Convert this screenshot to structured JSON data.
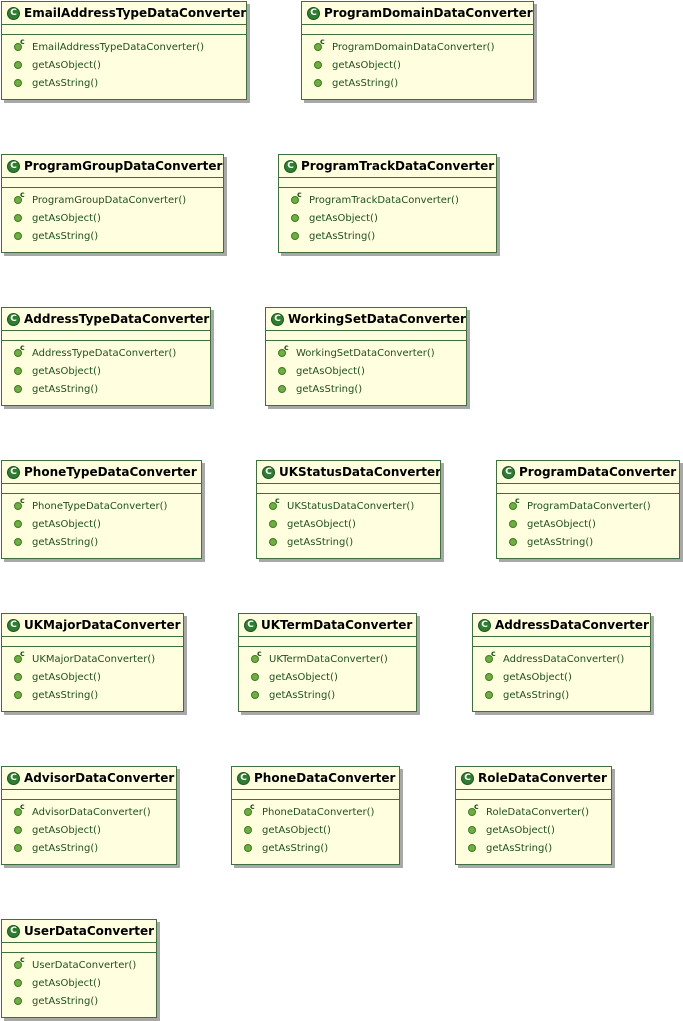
{
  "classes": [
    {
      "name": "EmailAddressTypeDataConverter",
      "methods": [
        "EmailAddressTypeDataConverter()",
        "getAsObject()",
        "getAsString()"
      ]
    },
    {
      "name": "ProgramDomainDataConverter",
      "methods": [
        "ProgramDomainDataConverter()",
        "getAsObject()",
        "getAsString()"
      ]
    },
    {
      "name": "ProgramGroupDataConverter",
      "methods": [
        "ProgramGroupDataConverter()",
        "getAsObject()",
        "getAsString()"
      ]
    },
    {
      "name": "ProgramTrackDataConverter",
      "methods": [
        "ProgramTrackDataConverter()",
        "getAsObject()",
        "getAsString()"
      ]
    },
    {
      "name": "AddressTypeDataConverter",
      "methods": [
        "AddressTypeDataConverter()",
        "getAsObject()",
        "getAsString()"
      ]
    },
    {
      "name": "WorkingSetDataConverter",
      "methods": [
        "WorkingSetDataConverter()",
        "getAsObject()",
        "getAsString()"
      ]
    },
    {
      "name": "PhoneTypeDataConverter",
      "methods": [
        "PhoneTypeDataConverter()",
        "getAsObject()",
        "getAsString()"
      ]
    },
    {
      "name": "UKStatusDataConverter",
      "methods": [
        "UKStatusDataConverter()",
        "getAsObject()",
        "getAsString()"
      ]
    },
    {
      "name": "ProgramDataConverter",
      "methods": [
        "ProgramDataConverter()",
        "getAsObject()",
        "getAsString()"
      ]
    },
    {
      "name": "UKMajorDataConverter",
      "methods": [
        "UKMajorDataConverter()",
        "getAsObject()",
        "getAsString()"
      ]
    },
    {
      "name": "UKTermDataConverter",
      "methods": [
        "UKTermDataConverter()",
        "getAsObject()",
        "getAsString()"
      ]
    },
    {
      "name": "AddressDataConverter",
      "methods": [
        "AddressDataConverter()",
        "getAsObject()",
        "getAsString()"
      ]
    },
    {
      "name": "AdvisorDataConverter",
      "methods": [
        "AdvisorDataConverter()",
        "getAsObject()",
        "getAsString()"
      ]
    },
    {
      "name": "PhoneDataConverter",
      "methods": [
        "PhoneDataConverter()",
        "getAsObject()",
        "getAsString()"
      ]
    },
    {
      "name": "RoleDataConverter",
      "methods": [
        "RoleDataConverter()",
        "getAsObject()",
        "getAsString()"
      ]
    },
    {
      "name": "UserDataConverter",
      "methods": [
        "UserDataConverter()",
        "getAsObject()",
        "getAsString()"
      ]
    }
  ],
  "icons": {
    "class_icon": "class-icon",
    "class_icon_glyph": "C",
    "constructor_icon": "constructor-icon",
    "method_icon": "public-method-icon"
  },
  "colors": {
    "class_fill": "#ffffe0",
    "border": "#3f6e3f",
    "method_icon": "#6fae43",
    "class_icon": "#2f7d2f"
  }
}
